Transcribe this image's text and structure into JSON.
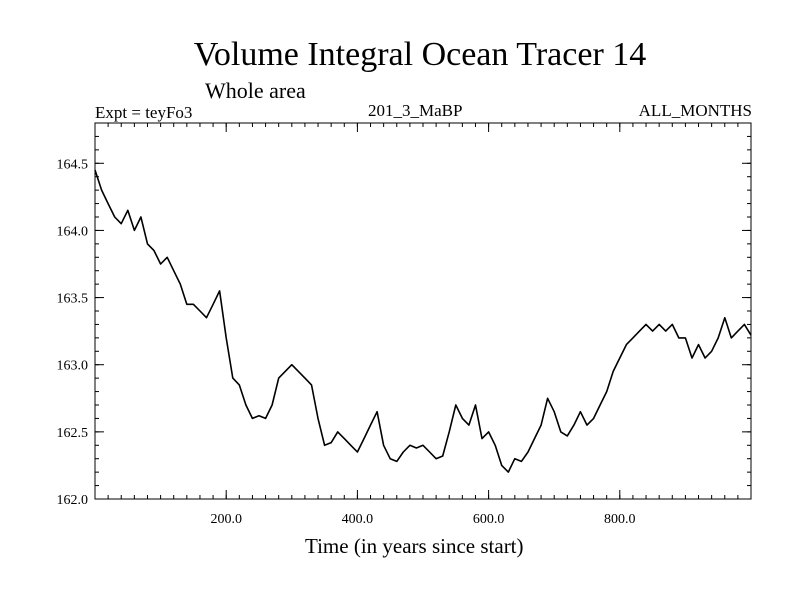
{
  "chart_data": {
    "type": "line",
    "title": "Volume Integral Ocean Tracer 14",
    "subtitle": "Whole area",
    "experiment_label": "Expt = teyFo3",
    "run_label": "201_3_MaBP",
    "months_label": "ALL_MONTHS",
    "xlabel": "Time (in years since start)",
    "ylabel": "",
    "xlim": [
      0,
      1000
    ],
    "ylim": [
      162.0,
      164.8
    ],
    "xticks": [
      200,
      400,
      600,
      800
    ],
    "xtick_labels": [
      "200.0",
      "400.0",
      "600.0",
      "800.0"
    ],
    "yticks": [
      162.0,
      162.5,
      163.0,
      163.5,
      164.0,
      164.5
    ],
    "ytick_labels": [
      "162.0",
      "162.5",
      "163.0",
      "163.5",
      "164.0",
      "164.5"
    ],
    "series": [
      {
        "name": "Volume Integral Ocean Tracer 14",
        "color": "#000000",
        "x": [
          0,
          10,
          20,
          30,
          40,
          50,
          60,
          70,
          80,
          90,
          100,
          110,
          120,
          130,
          140,
          150,
          160,
          170,
          180,
          190,
          200,
          210,
          220,
          230,
          240,
          250,
          260,
          270,
          280,
          290,
          300,
          310,
          320,
          330,
          340,
          350,
          360,
          370,
          380,
          390,
          400,
          410,
          420,
          430,
          440,
          450,
          460,
          470,
          480,
          490,
          500,
          510,
          520,
          530,
          540,
          550,
          560,
          570,
          580,
          590,
          600,
          610,
          620,
          630,
          640,
          650,
          660,
          670,
          680,
          690,
          700,
          710,
          720,
          730,
          740,
          750,
          760,
          770,
          780,
          790,
          800,
          810,
          820,
          830,
          840,
          850,
          860,
          870,
          880,
          890,
          900,
          910,
          920,
          930,
          940,
          950,
          960,
          970,
          980,
          990,
          1000
        ],
        "y": [
          164.45,
          164.3,
          164.2,
          164.1,
          164.05,
          164.15,
          164.0,
          164.1,
          163.9,
          163.85,
          163.75,
          163.8,
          163.7,
          163.6,
          163.45,
          163.45,
          163.4,
          163.35,
          163.45,
          163.55,
          163.2,
          162.9,
          162.85,
          162.7,
          162.6,
          162.62,
          162.6,
          162.7,
          162.9,
          162.95,
          163.0,
          162.95,
          162.9,
          162.85,
          162.6,
          162.4,
          162.42,
          162.5,
          162.45,
          162.4,
          162.35,
          162.45,
          162.55,
          162.65,
          162.4,
          162.3,
          162.28,
          162.35,
          162.4,
          162.38,
          162.4,
          162.35,
          162.3,
          162.32,
          162.5,
          162.7,
          162.6,
          162.55,
          162.7,
          162.45,
          162.5,
          162.4,
          162.25,
          162.2,
          162.3,
          162.28,
          162.35,
          162.45,
          162.55,
          162.75,
          162.65,
          162.5,
          162.47,
          162.55,
          162.65,
          162.55,
          162.6,
          162.7,
          162.8,
          162.95,
          163.05,
          163.15,
          163.2,
          163.25,
          163.3,
          163.25,
          163.3,
          163.25,
          163.3,
          163.2,
          163.2,
          163.05,
          163.15,
          163.05,
          163.1,
          163.2,
          163.35,
          163.2,
          163.25,
          163.3,
          163.22
        ]
      }
    ]
  }
}
